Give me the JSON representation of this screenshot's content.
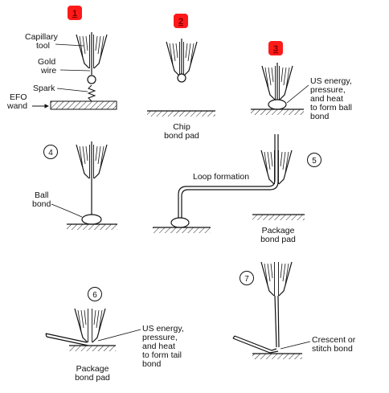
{
  "colors": {
    "step_badge_highlight": "#ff1a1a",
    "ink": "#111111"
  },
  "steps": {
    "s1": {
      "number": "1",
      "labels": {
        "capillary_1": "Capillary",
        "capillary_2": "tool",
        "gold_1": "Gold",
        "gold_2": "wire",
        "spark": "Spark",
        "efo_1": "EFO",
        "efo_2": "wand"
      }
    },
    "s2": {
      "number": "2",
      "labels": {
        "line1": "Chip",
        "line2": "bond pad"
      }
    },
    "s3": {
      "number": "3",
      "labels": {
        "l1": "US energy,",
        "l2": "pressure,",
        "l3": "and heat",
        "l4": "to form ball",
        "l5": "bond"
      }
    },
    "s4": {
      "number": "4",
      "labels": {
        "l1": "Ball",
        "l2": "bond"
      }
    },
    "s5": {
      "number": "5",
      "labels": {
        "loop": "Loop formation",
        "pkg1": "Package",
        "pkg2": "bond pad"
      }
    },
    "s6": {
      "number": "6",
      "labels": {
        "l1": "US energy,",
        "l2": "pressure,",
        "l3": "and heat",
        "l4": "to form tail",
        "l5": "bond",
        "pkg1": "Package",
        "pkg2": "bond pad"
      }
    },
    "s7": {
      "number": "7",
      "labels": {
        "l1": "Crescent or",
        "l2": "stitch bond"
      }
    }
  }
}
